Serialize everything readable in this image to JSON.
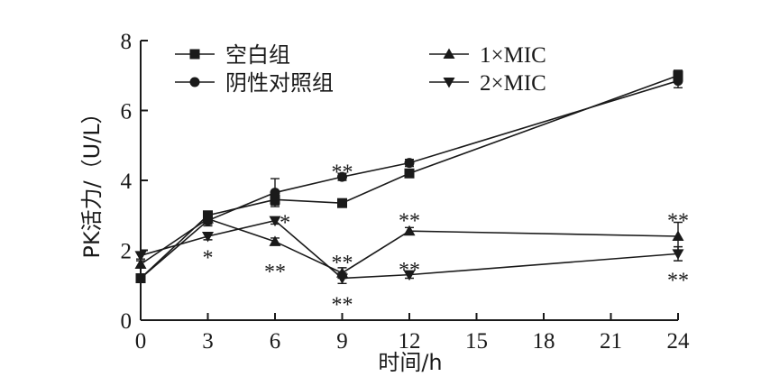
{
  "chart_data": {
    "type": "line",
    "xlabel": "时间/h",
    "ylabel": "PK活力/（U/L）",
    "xlim": [
      0,
      24
    ],
    "ylim": [
      0,
      8
    ],
    "x_ticks": [
      0,
      3,
      6,
      9,
      12,
      15,
      18,
      21,
      24
    ],
    "y_ticks": [
      0,
      2,
      4,
      6,
      8
    ],
    "legend_position": "top",
    "x": [
      0,
      3,
      6,
      9,
      12,
      24
    ],
    "series": [
      {
        "name": "空白组",
        "marker": "square",
        "values": [
          1.2,
          3.0,
          3.45,
          3.35,
          4.2,
          7.0
        ],
        "errors": [
          0.1,
          0.1,
          0.15,
          0.1,
          0.1,
          0.15
        ]
      },
      {
        "name": "阴性对照组",
        "marker": "circle",
        "values": [
          1.2,
          2.85,
          3.65,
          4.1,
          4.5,
          6.85
        ],
        "errors": [
          0.1,
          0.15,
          0.4,
          0.1,
          0.1,
          0.2
        ]
      },
      {
        "name": "1×MIC",
        "marker": "triangle-up",
        "values": [
          1.6,
          2.9,
          2.25,
          1.35,
          2.55,
          2.4
        ],
        "errors": [
          0.1,
          0.15,
          0.1,
          0.15,
          0.1,
          0.4
        ]
      },
      {
        "name": "2×MIC",
        "marker": "triangle-down",
        "values": [
          1.85,
          2.4,
          2.85,
          1.2,
          1.3,
          1.9
        ],
        "errors": [
          0.1,
          0.1,
          0.1,
          0.15,
          0.1,
          0.2
        ]
      }
    ],
    "annotations": [
      {
        "x": 3,
        "y": 1.9,
        "text": "*"
      },
      {
        "x": 6,
        "y": 1.5,
        "text": "**"
      },
      {
        "x": 6.45,
        "y": 2.9,
        "text": "*"
      },
      {
        "x": 9,
        "y": 4.35,
        "text": "**"
      },
      {
        "x": 9,
        "y": 1.75,
        "text": "**"
      },
      {
        "x": 9,
        "y": 0.55,
        "text": "**"
      },
      {
        "x": 12,
        "y": 2.95,
        "text": "**"
      },
      {
        "x": 12,
        "y": 1.55,
        "text": "**"
      },
      {
        "x": 24,
        "y": 2.95,
        "text": "**"
      },
      {
        "x": 24,
        "y": 1.25,
        "text": "**"
      }
    ]
  }
}
